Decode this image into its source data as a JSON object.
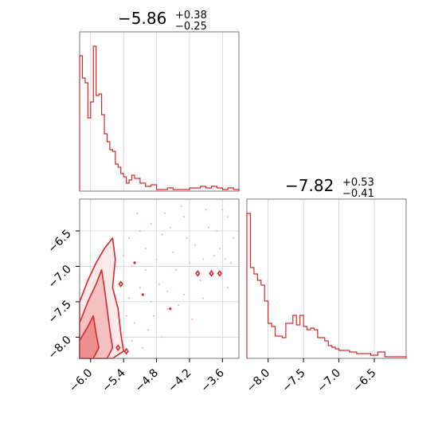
{
  "colors": {
    "accent": "#d62728",
    "grid": "#d0d0d0",
    "frame": "#777777"
  },
  "chart_data": [
    {
      "type": "histogram",
      "panel": "top-left",
      "title": {
        "main": "−5.86",
        "sup": "+0.38",
        "sub": "−0.25"
      },
      "xlim": [
        -6.2,
        -3.3
      ],
      "grid": true,
      "bins": [
        {
          "x0": -6.2,
          "x1": -6.15,
          "y": 0.85
        },
        {
          "x0": -6.15,
          "x1": -6.1,
          "y": 0.71
        },
        {
          "x0": -6.1,
          "x1": -6.05,
          "y": 0.68
        },
        {
          "x0": -6.05,
          "x1": -6.0,
          "y": 0.46
        },
        {
          "x0": -6.0,
          "x1": -5.95,
          "y": 0.56
        },
        {
          "x0": -5.95,
          "x1": -5.9,
          "y": 0.91
        },
        {
          "x0": -5.9,
          "x1": -5.85,
          "y": 0.6
        },
        {
          "x0": -5.85,
          "x1": -5.8,
          "y": 0.61
        },
        {
          "x0": -5.8,
          "x1": -5.75,
          "y": 0.48
        },
        {
          "x0": -5.75,
          "x1": -5.7,
          "y": 0.36
        },
        {
          "x0": -5.7,
          "x1": -5.65,
          "y": 0.31
        },
        {
          "x0": -5.65,
          "x1": -5.6,
          "y": 0.26
        },
        {
          "x0": -5.6,
          "x1": -5.55,
          "y": 0.25
        },
        {
          "x0": -5.55,
          "x1": -5.5,
          "y": 0.17
        },
        {
          "x0": -5.5,
          "x1": -5.45,
          "y": 0.15
        },
        {
          "x0": -5.45,
          "x1": -5.4,
          "y": 0.11
        },
        {
          "x0": -5.4,
          "x1": -5.35,
          "y": 0.09
        },
        {
          "x0": -5.35,
          "x1": -5.3,
          "y": 0.05
        },
        {
          "x0": -5.3,
          "x1": -5.25,
          "y": 0.07
        },
        {
          "x0": -5.25,
          "x1": -5.2,
          "y": 0.1
        },
        {
          "x0": -5.2,
          "x1": -5.1,
          "y": 0.08
        },
        {
          "x0": -5.1,
          "x1": -5.0,
          "y": 0.05
        },
        {
          "x0": -5.0,
          "x1": -4.9,
          "y": 0.03
        },
        {
          "x0": -4.9,
          "x1": -4.8,
          "y": 0.04
        },
        {
          "x0": -4.8,
          "x1": -4.7,
          "y": 0.01
        },
        {
          "x0": -4.7,
          "x1": -4.6,
          "y": 0.01
        },
        {
          "x0": -4.6,
          "x1": -4.5,
          "y": 0.02
        },
        {
          "x0": -4.5,
          "x1": -4.4,
          "y": 0.01
        },
        {
          "x0": -4.4,
          "x1": -4.3,
          "y": 0.01
        },
        {
          "x0": -4.3,
          "x1": -4.2,
          "y": 0.01
        },
        {
          "x0": -4.2,
          "x1": -4.1,
          "y": 0.02
        },
        {
          "x0": -4.1,
          "x1": -4.0,
          "y": 0.02
        },
        {
          "x0": -4.0,
          "x1": -3.9,
          "y": 0.03
        },
        {
          "x0": -3.9,
          "x1": -3.8,
          "y": 0.02
        },
        {
          "x0": -3.8,
          "x1": -3.7,
          "y": 0.03
        },
        {
          "x0": -3.7,
          "x1": -3.6,
          "y": 0.02
        },
        {
          "x0": -3.6,
          "x1": -3.5,
          "y": 0.01
        },
        {
          "x0": -3.5,
          "x1": -3.4,
          "y": 0.02
        },
        {
          "x0": -3.4,
          "x1": -3.3,
          "y": 0.01
        }
      ]
    },
    {
      "type": "contour",
      "panel": "bottom-left",
      "xlim": [
        -6.2,
        -3.3
      ],
      "ylim": [
        -8.3,
        -6.05
      ],
      "xticks": [
        -6.0,
        -5.4,
        -4.8,
        -4.2,
        -3.6
      ],
      "xtick_labels": [
        "−6.0",
        "−5.4",
        "−4.8",
        "−4.2",
        "−3.6"
      ],
      "yticks": [
        -6.5,
        -7.0,
        -7.5,
        -8.0
      ],
      "ytick_labels": [
        "−6.5",
        "−7.0",
        "−7.5",
        "−8.0"
      ],
      "grid": true,
      "contour_levels": [
        {
          "level": 1,
          "fill": "#fde9e9",
          "points": [
            [
              -6.2,
              -8.3
            ],
            [
              -6.2,
              -7.5
            ],
            [
              -6.05,
              -7.2
            ],
            [
              -5.9,
              -6.95
            ],
            [
              -5.75,
              -6.75
            ],
            [
              -5.6,
              -6.6
            ],
            [
              -5.55,
              -6.9
            ],
            [
              -5.6,
              -7.3
            ],
            [
              -5.5,
              -7.6
            ],
            [
              -5.45,
              -7.95
            ],
            [
              -5.4,
              -8.2
            ],
            [
              -5.6,
              -8.3
            ]
          ]
        },
        {
          "level": 2,
          "fill": "#f7c0c0",
          "points": [
            [
              -6.2,
              -8.3
            ],
            [
              -6.2,
              -7.8
            ],
            [
              -6.05,
              -7.5
            ],
            [
              -5.9,
              -7.25
            ],
            [
              -5.8,
              -7.05
            ],
            [
              -5.75,
              -7.3
            ],
            [
              -5.7,
              -7.6
            ],
            [
              -5.65,
              -7.9
            ],
            [
              -5.6,
              -8.15
            ],
            [
              -5.7,
              -8.3
            ]
          ]
        },
        {
          "level": 3,
          "fill": "#ee8d8d",
          "points": [
            [
              -6.2,
              -8.3
            ],
            [
              -6.2,
              -8.05
            ],
            [
              -6.05,
              -7.85
            ],
            [
              -5.95,
              -7.7
            ],
            [
              -5.9,
              -7.95
            ],
            [
              -5.85,
              -8.15
            ],
            [
              -5.95,
              -8.3
            ]
          ]
        }
      ],
      "islands": [
        {
          "x": -4.05,
          "y": -7.1
        },
        {
          "x": -3.8,
          "y": -7.1
        },
        {
          "x": -3.65,
          "y": -7.1
        },
        {
          "x": -5.45,
          "y": -7.25
        },
        {
          "x": -5.5,
          "y": -8.15
        },
        {
          "x": -5.35,
          "y": -8.2
        }
      ],
      "scatter": [
        [
          -5.3,
          -6.6
        ],
        [
          -5.1,
          -6.5
        ],
        [
          -4.9,
          -6.4
        ],
        [
          -4.7,
          -6.55
        ],
        [
          -4.5,
          -6.8
        ],
        [
          -4.3,
          -6.3
        ],
        [
          -4.1,
          -6.7
        ],
        [
          -3.9,
          -6.2
        ],
        [
          -3.7,
          -6.5
        ],
        [
          -3.5,
          -6.3
        ],
        [
          -3.4,
          -6.6
        ],
        [
          -3.55,
          -6.9
        ],
        [
          -3.8,
          -7.05
        ],
        [
          -4.0,
          -7.2
        ],
        [
          -4.3,
          -7.4
        ],
        [
          -4.6,
          -7.6
        ],
        [
          -4.9,
          -7.5
        ],
        [
          -5.1,
          -7.3
        ],
        [
          -5.25,
          -7.0
        ],
        [
          -5.0,
          -7.05
        ],
        [
          -4.75,
          -7.25
        ],
        [
          -4.45,
          -7.05
        ],
        [
          -4.2,
          -6.95
        ],
        [
          -3.95,
          -6.9
        ],
        [
          -3.65,
          -6.75
        ],
        [
          -3.45,
          -6.95
        ],
        [
          -5.2,
          -7.8
        ],
        [
          -4.95,
          -7.9
        ],
        [
          -4.7,
          -8.0
        ],
        [
          -5.05,
          -8.15
        ],
        [
          -4.8,
          -6.9
        ],
        [
          -4.55,
          -6.45
        ],
        [
          -4.25,
          -6.6
        ],
        [
          -3.85,
          -6.45
        ],
        [
          -3.6,
          -6.2
        ],
        [
          -5.15,
          -6.25
        ],
        [
          -4.65,
          -6.25
        ],
        [
          -4.4,
          -7.55
        ],
        [
          -4.15,
          -7.75
        ],
        [
          -5.3,
          -7.45
        ],
        [
          -5.35,
          -7.7
        ],
        [
          -5.4,
          -6.85
        ],
        [
          -3.5,
          -7.3
        ],
        [
          -4.85,
          -7.7
        ],
        [
          -5.0,
          -6.75
        ],
        [
          -4.35,
          -6.15
        ],
        [
          -3.75,
          -6.85
        ],
        [
          -5.25,
          -8.05
        ],
        [
          -4.6,
          -7.35
        ],
        [
          -3.95,
          -7.45
        ]
      ],
      "highlight_points": [
        [
          -4.55,
          -7.6
        ],
        [
          -5.05,
          -7.4
        ],
        [
          -5.2,
          -6.95
        ]
      ]
    },
    {
      "type": "histogram",
      "panel": "bottom-right",
      "title": {
        "main": "−7.82",
        "sup": "+0.53",
        "sub": "−0.41"
      },
      "xlim": [
        -8.3,
        -6.05
      ],
      "xticks": [
        -8.0,
        -7.5,
        -7.0,
        -6.5
      ],
      "xtick_labels": [
        "−8.0",
        "−7.5",
        "−7.0",
        "−6.5"
      ],
      "grid": true,
      "bins": [
        {
          "x0": -8.3,
          "x1": -8.25,
          "y": 0.91
        },
        {
          "x0": -8.25,
          "x1": -8.2,
          "y": 0.57
        },
        {
          "x0": -8.2,
          "x1": -8.15,
          "y": 0.53
        },
        {
          "x0": -8.15,
          "x1": -8.1,
          "y": 0.49
        },
        {
          "x0": -8.1,
          "x1": -8.05,
          "y": 0.46
        },
        {
          "x0": -8.05,
          "x1": -8.0,
          "y": 0.36
        },
        {
          "x0": -8.0,
          "x1": -7.95,
          "y": 0.22
        },
        {
          "x0": -7.95,
          "x1": -7.9,
          "y": 0.2
        },
        {
          "x0": -7.9,
          "x1": -7.85,
          "y": 0.14
        },
        {
          "x0": -7.85,
          "x1": -7.8,
          "y": 0.14
        },
        {
          "x0": -7.8,
          "x1": -7.75,
          "y": 0.13
        },
        {
          "x0": -7.75,
          "x1": -7.7,
          "y": 0.22
        },
        {
          "x0": -7.7,
          "x1": -7.65,
          "y": 0.22
        },
        {
          "x0": -7.65,
          "x1": -7.6,
          "y": 0.27
        },
        {
          "x0": -7.6,
          "x1": -7.55,
          "y": 0.21
        },
        {
          "x0": -7.55,
          "x1": -7.5,
          "y": 0.27
        },
        {
          "x0": -7.5,
          "x1": -7.45,
          "y": 0.2
        },
        {
          "x0": -7.45,
          "x1": -7.4,
          "y": 0.18
        },
        {
          "x0": -7.4,
          "x1": -7.35,
          "y": 0.19
        },
        {
          "x0": -7.35,
          "x1": -7.3,
          "y": 0.18
        },
        {
          "x0": -7.3,
          "x1": -7.25,
          "y": 0.13
        },
        {
          "x0": -7.25,
          "x1": -7.2,
          "y": 0.13
        },
        {
          "x0": -7.2,
          "x1": -7.15,
          "y": 0.11
        },
        {
          "x0": -7.15,
          "x1": -7.1,
          "y": 0.08
        },
        {
          "x0": -7.1,
          "x1": -7.05,
          "y": 0.07
        },
        {
          "x0": -7.05,
          "x1": -7.0,
          "y": 0.06
        },
        {
          "x0": -7.0,
          "x1": -6.95,
          "y": 0.05
        },
        {
          "x0": -6.95,
          "x1": -6.85,
          "y": 0.05
        },
        {
          "x0": -6.85,
          "x1": -6.75,
          "y": 0.04
        },
        {
          "x0": -6.75,
          "x1": -6.65,
          "y": 0.03
        },
        {
          "x0": -6.65,
          "x1": -6.55,
          "y": 0.03
        },
        {
          "x0": -6.55,
          "x1": -6.45,
          "y": 0.02
        },
        {
          "x0": -6.45,
          "x1": -6.35,
          "y": 0.04
        },
        {
          "x0": -6.35,
          "x1": -6.25,
          "y": 0.01
        },
        {
          "x0": -6.25,
          "x1": -6.15,
          "y": 0.01
        },
        {
          "x0": -6.15,
          "x1": -6.05,
          "y": 0.01
        }
      ]
    }
  ]
}
